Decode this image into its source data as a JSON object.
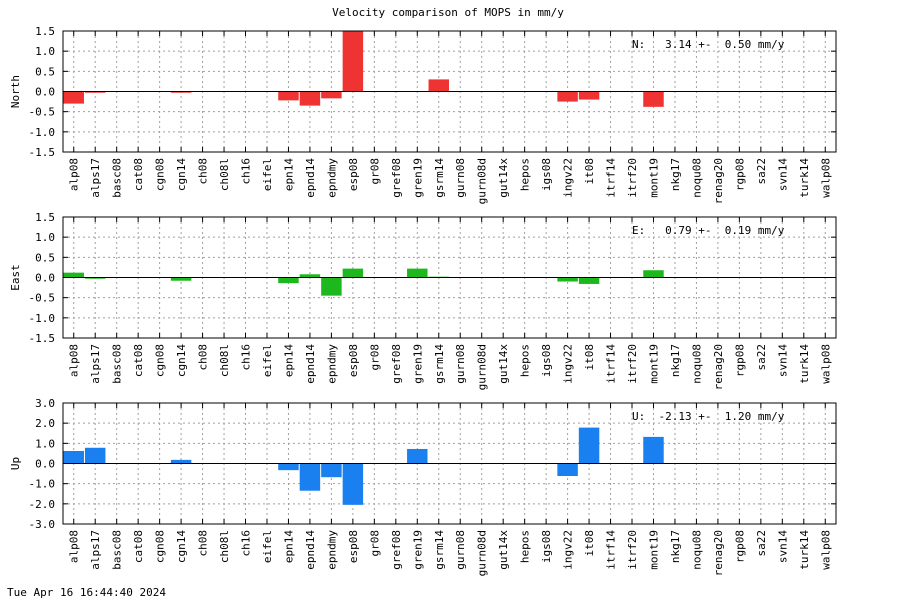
{
  "title": "Velocity comparison of MOPS in mm/y",
  "timestamp": "Tue Apr 16 16:44:40 2024",
  "chart_data": [
    {
      "type": "bar",
      "ylabel": "North",
      "ylim": [
        -1.5,
        1.5
      ],
      "yticks": [
        "1.5",
        "1.0",
        "0.5",
        "0.0",
        "-0.5",
        "-1.0",
        "-1.5"
      ],
      "ytick_values": [
        1.5,
        1.0,
        0.5,
        0.0,
        -0.5,
        -1.0,
        -1.5
      ],
      "annotation": "N:   3.14 +-  0.50 mm/y",
      "color": "#ef3232",
      "grid": true,
      "categories": [
        "alp08",
        "alps17",
        "basc08",
        "cat08",
        "cgn08",
        "cgn14",
        "ch08",
        "ch08l",
        "ch16",
        "eifel",
        "epn14",
        "epnd14",
        "epndmy",
        "esp08",
        "gr08",
        "gref08",
        "gren19",
        "gsrm14",
        "gurn08",
        "gurn08d",
        "gut14x",
        "hepos",
        "igs08",
        "ingv22",
        "it08",
        "itrf14",
        "itrf20",
        "mont19",
        "nkg17",
        "noqu08",
        "renag20",
        "rgp08",
        "sa22",
        "svn14",
        "turk14",
        "walp08"
      ],
      "values": [
        -0.3,
        -0.03,
        0,
        0,
        0,
        -0.03,
        0,
        0,
        0,
        0,
        -0.22,
        -0.35,
        -0.17,
        1.5,
        0,
        0,
        0,
        0.3,
        0,
        0,
        0,
        0,
        0,
        -0.25,
        -0.2,
        0,
        0,
        -0.38,
        0,
        0,
        0,
        0,
        0,
        0,
        0,
        0
      ]
    },
    {
      "type": "bar",
      "ylabel": "East",
      "ylim": [
        -1.5,
        1.5
      ],
      "yticks": [
        "1.5",
        "1.0",
        "0.5",
        "0.0",
        "-0.5",
        "-1.0",
        "-1.5"
      ],
      "ytick_values": [
        1.5,
        1.0,
        0.5,
        0.0,
        -0.5,
        -1.0,
        -1.5
      ],
      "annotation": "E:   0.79 +-  0.19 mm/y",
      "color": "#1db81d",
      "grid": true,
      "categories": [
        "alp08",
        "alps17",
        "basc08",
        "cat08",
        "cgn08",
        "cgn14",
        "ch08",
        "ch08l",
        "ch16",
        "eifel",
        "epn14",
        "epnd14",
        "epndmy",
        "esp08",
        "gr08",
        "gref08",
        "gren19",
        "gsrm14",
        "gurn08",
        "gurn08d",
        "gut14x",
        "hepos",
        "igs08",
        "ingv22",
        "it08",
        "itrf14",
        "itrf20",
        "mont19",
        "nkg17",
        "noqu08",
        "renag20",
        "rgp08",
        "sa22",
        "svn14",
        "turk14",
        "walp08"
      ],
      "values": [
        0.12,
        -0.03,
        0,
        0,
        0,
        -0.08,
        0,
        0,
        0,
        0,
        -0.14,
        0.08,
        -0.45,
        0.22,
        0,
        0,
        0.22,
        0.02,
        0,
        0,
        0,
        0,
        0,
        -0.1,
        -0.16,
        0,
        0,
        0.18,
        0,
        0,
        0,
        0,
        0,
        0,
        0,
        0
      ]
    },
    {
      "type": "bar",
      "ylabel": "Up",
      "ylim": [
        -3.0,
        3.0
      ],
      "yticks": [
        "3.0",
        "2.0",
        "1.0",
        "0.0",
        "-1.0",
        "-2.0",
        "-3.0"
      ],
      "ytick_values": [
        3.0,
        2.0,
        1.0,
        0.0,
        -1.0,
        -2.0,
        -3.0
      ],
      "annotation": "U:  -2.13 +-  1.20 mm/y",
      "color": "#1a80f0",
      "grid": true,
      "categories": [
        "alp08",
        "alps17",
        "basc08",
        "cat08",
        "cgn08",
        "cgn14",
        "ch08",
        "ch08l",
        "ch16",
        "eifel",
        "epn14",
        "epnd14",
        "epndmy",
        "esp08",
        "gr08",
        "gref08",
        "gren19",
        "gsrm14",
        "gurn08",
        "gurn08d",
        "gut14x",
        "hepos",
        "igs08",
        "ingv22",
        "it08",
        "itrf14",
        "itrf20",
        "mont19",
        "nkg17",
        "noqu08",
        "renag20",
        "rgp08",
        "sa22",
        "svn14",
        "turk14",
        "walp08"
      ],
      "values": [
        0.62,
        0.78,
        0,
        0,
        0,
        0.18,
        0,
        0,
        0,
        0,
        -0.33,
        -1.35,
        -0.68,
        -2.05,
        0,
        0,
        0.72,
        0,
        0,
        0,
        0,
        0,
        0,
        -0.62,
        1.78,
        0,
        0,
        1.32,
        0,
        0,
        0,
        0,
        0,
        0,
        0,
        0
      ]
    }
  ]
}
